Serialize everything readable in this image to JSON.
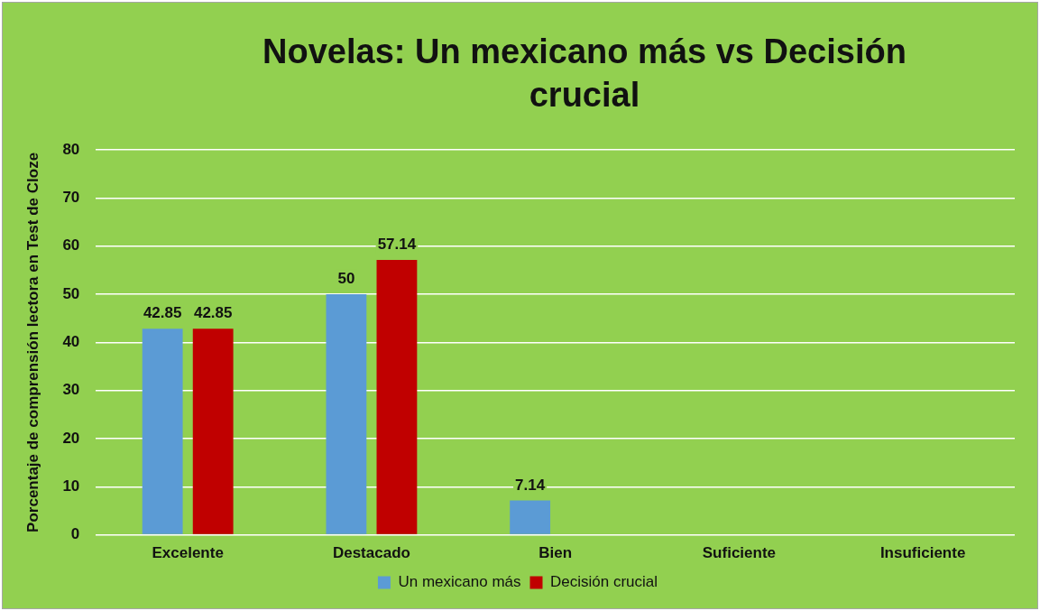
{
  "chart_data": {
    "type": "bar",
    "title": "Novelas: Un mexicano más vs Decisión crucial",
    "ylabel": "Porcentaje de comprensión lectora en Test de Cloze",
    "categories": [
      "Excelente",
      "Destacado",
      "Bien",
      "Suficiente",
      "Insuficiente"
    ],
    "series": [
      {
        "name": "Un mexicano más",
        "color": "#5b9bd5",
        "values": [
          42.85,
          50,
          7.14,
          null,
          null
        ],
        "value_labels": [
          "42.85",
          "50",
          "7.14",
          null,
          null
        ]
      },
      {
        "name": "Decisión crucial",
        "color": "#c00000",
        "values": [
          42.85,
          57.14,
          null,
          null,
          null
        ],
        "value_labels": [
          "42.85",
          "57.14",
          null,
          null,
          null
        ]
      }
    ],
    "ylim": [
      0,
      80
    ],
    "yticks": [
      0,
      10,
      20,
      30,
      40,
      50,
      60,
      70,
      80
    ],
    "grid": "y",
    "legend": "bottom"
  }
}
